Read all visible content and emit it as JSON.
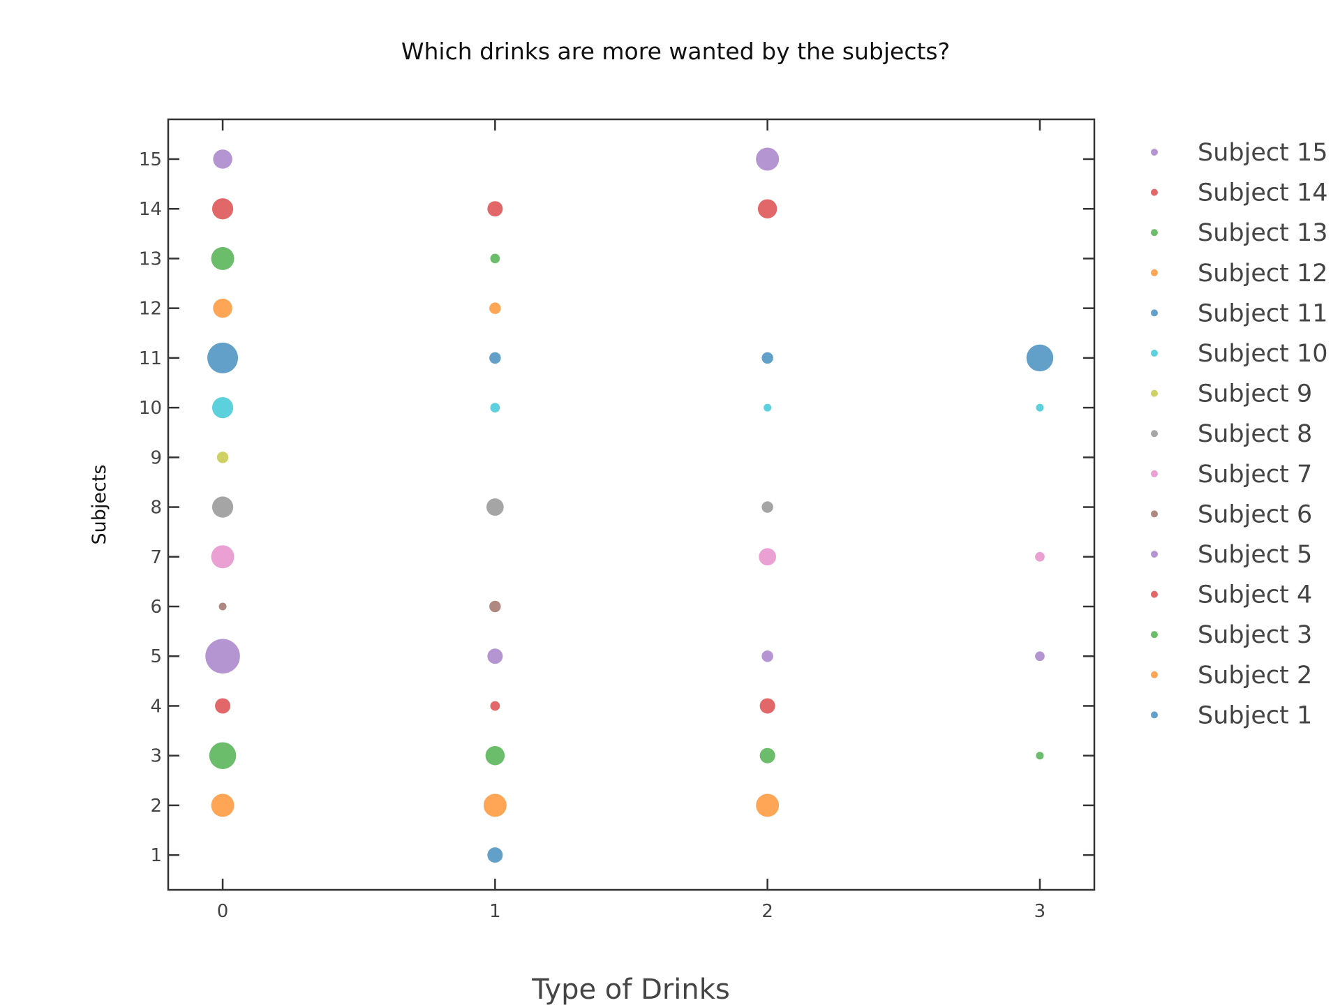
{
  "chart_data": {
    "type": "scatter",
    "title": "Which drinks are more wanted by the subjects?",
    "xlabel": "Type of Drinks",
    "ylabel": "Subjects",
    "xlim": [
      -0.2,
      3.2
    ],
    "ylim": [
      0.3,
      15.8
    ],
    "xticks": [
      0,
      1,
      2,
      3
    ],
    "yticks": [
      1,
      2,
      3,
      4,
      5,
      6,
      7,
      8,
      9,
      10,
      11,
      12,
      13,
      14,
      15
    ],
    "grid": false,
    "legend_position": "right",
    "series": [
      {
        "name": "Subject 1",
        "color": "#1f77b4",
        "points": [
          {
            "x": 1,
            "y": 1,
            "size": 4
          }
        ]
      },
      {
        "name": "Subject 2",
        "color": "#ff7f0e",
        "points": [
          {
            "x": 0,
            "y": 2,
            "size": 6
          },
          {
            "x": 1,
            "y": 2,
            "size": 6
          },
          {
            "x": 2,
            "y": 2,
            "size": 6
          }
        ]
      },
      {
        "name": "Subject 3",
        "color": "#2ca02c",
        "points": [
          {
            "x": 0,
            "y": 3,
            "size": 7
          },
          {
            "x": 1,
            "y": 3,
            "size": 5
          },
          {
            "x": 2,
            "y": 3,
            "size": 4
          },
          {
            "x": 3,
            "y": 3,
            "size": 2
          }
        ]
      },
      {
        "name": "Subject 4",
        "color": "#d62728",
        "points": [
          {
            "x": 0,
            "y": 4,
            "size": 4
          },
          {
            "x": 1,
            "y": 4,
            "size": 2.5
          },
          {
            "x": 2,
            "y": 4,
            "size": 4
          }
        ]
      },
      {
        "name": "Subject 5",
        "color": "#9467bd",
        "points": [
          {
            "x": 0,
            "y": 5,
            "size": 9
          },
          {
            "x": 1,
            "y": 5,
            "size": 4
          },
          {
            "x": 2,
            "y": 5,
            "size": 3
          },
          {
            "x": 3,
            "y": 5,
            "size": 2.5
          }
        ]
      },
      {
        "name": "Subject 6",
        "color": "#8c564b",
        "points": [
          {
            "x": 0,
            "y": 6,
            "size": 2
          },
          {
            "x": 1,
            "y": 6,
            "size": 3
          }
        ]
      },
      {
        "name": "Subject 7",
        "color": "#e377c2",
        "points": [
          {
            "x": 0,
            "y": 7,
            "size": 6
          },
          {
            "x": 2,
            "y": 7,
            "size": 4.5
          },
          {
            "x": 3,
            "y": 7,
            "size": 2.5
          }
        ]
      },
      {
        "name": "Subject 8",
        "color": "#7f7f7f",
        "points": [
          {
            "x": 0,
            "y": 8,
            "size": 5.5
          },
          {
            "x": 1,
            "y": 8,
            "size": 4.5
          },
          {
            "x": 2,
            "y": 8,
            "size": 3
          }
        ]
      },
      {
        "name": "Subject 9",
        "color": "#bcbd22",
        "points": [
          {
            "x": 0,
            "y": 9,
            "size": 3
          }
        ]
      },
      {
        "name": "Subject 10",
        "color": "#17becf",
        "points": [
          {
            "x": 0,
            "y": 10,
            "size": 5.5
          },
          {
            "x": 1,
            "y": 10,
            "size": 2.5
          },
          {
            "x": 2,
            "y": 10,
            "size": 2
          },
          {
            "x": 3,
            "y": 10,
            "size": 2
          }
        ]
      },
      {
        "name": "Subject 11",
        "color": "#1f77b4",
        "points": [
          {
            "x": 0,
            "y": 11,
            "size": 8
          },
          {
            "x": 1,
            "y": 11,
            "size": 3
          },
          {
            "x": 2,
            "y": 11,
            "size": 3
          },
          {
            "x": 3,
            "y": 11,
            "size": 7
          }
        ]
      },
      {
        "name": "Subject 12",
        "color": "#ff7f0e",
        "points": [
          {
            "x": 0,
            "y": 12,
            "size": 5
          },
          {
            "x": 1,
            "y": 12,
            "size": 3
          }
        ]
      },
      {
        "name": "Subject 13",
        "color": "#2ca02c",
        "points": [
          {
            "x": 0,
            "y": 13,
            "size": 6
          },
          {
            "x": 1,
            "y": 13,
            "size": 2.5
          }
        ]
      },
      {
        "name": "Subject 14",
        "color": "#d62728",
        "points": [
          {
            "x": 0,
            "y": 14,
            "size": 5.5
          },
          {
            "x": 1,
            "y": 14,
            "size": 4
          },
          {
            "x": 2,
            "y": 14,
            "size": 5
          }
        ]
      },
      {
        "name": "Subject 15",
        "color": "#9467bd",
        "points": [
          {
            "x": 0,
            "y": 15,
            "size": 5
          },
          {
            "x": 2,
            "y": 15,
            "size": 6
          }
        ]
      }
    ]
  }
}
